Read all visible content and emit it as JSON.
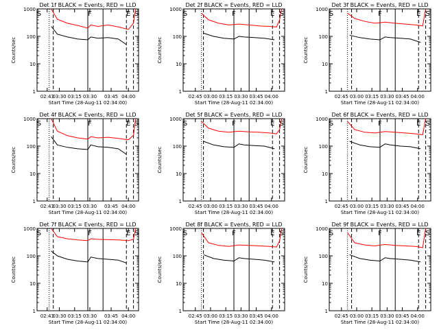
{
  "colors": {
    "events": "#000000",
    "lld": "#ff0000",
    "axes": "#000000"
  },
  "shared": {
    "ylabel": "Counts/sec",
    "xlabel": "Start Time (28-Aug-11 02:34:00)",
    "yticks": [
      "1",
      "10",
      "100",
      "1000"
    ],
    "ylim": [
      1,
      1000
    ],
    "yscale": "log",
    "xlim_minutes": [
      0,
      100
    ],
    "xticks_standard": [
      "02:45",
      "03:00",
      "03:15",
      "03:30",
      "03:45",
      "04:00"
    ],
    "xticks_compact": [
      "02:43",
      "03:30",
      "03:15",
      "03:30",
      "03:45",
      "04:00"
    ]
  },
  "chart_data": [
    {
      "type": "line",
      "title": "Det 1f BLACK = Events, RED = LLD",
      "xtick_style": "compact",
      "markers": [
        {
          "label": "S",
          "x": 2
        },
        {
          "label": "F",
          "x": 52
        },
        {
          "label": "E",
          "x": 90
        },
        {
          "label": "S",
          "x": 98
        }
      ],
      "vlines": [
        {
          "x": 12,
          "style": "dotted"
        },
        {
          "x": 16,
          "style": "dashed"
        },
        {
          "x": 50,
          "style": "solid"
        },
        {
          "x": 65,
          "style": "solid"
        },
        {
          "x": 88,
          "style": "dashed"
        },
        {
          "x": 95,
          "style": "dashed"
        }
      ],
      "series": [
        {
          "name": "BLACK = Events",
          "color": "#000000",
          "x": [
            14,
            20,
            30,
            40,
            50,
            53,
            60,
            70,
            80,
            88
          ],
          "y": [
            230,
            120,
            95,
            80,
            75,
            95,
            85,
            90,
            80,
            50
          ]
        },
        {
          "name": "RED = LLD",
          "color": "#ff0000",
          "x": [
            14,
            20,
            30,
            40,
            50,
            53,
            60,
            70,
            80,
            90,
            95,
            97
          ],
          "y": [
            1000,
            420,
            300,
            250,
            200,
            260,
            230,
            260,
            220,
            180,
            300,
            1000
          ]
        }
      ]
    },
    {
      "type": "line",
      "title": "Det 2f BLACK = Events, RED = LLD",
      "xtick_style": "standard",
      "markers": [
        {
          "label": "S",
          "x": 2
        },
        {
          "label": "F",
          "x": 50
        },
        {
          "label": "E",
          "x": 88
        },
        {
          "label": "S",
          "x": 97
        }
      ],
      "vlines": [
        {
          "x": 18,
          "style": "dotted"
        },
        {
          "x": 20,
          "style": "dashed"
        },
        {
          "x": 50,
          "style": "solid"
        },
        {
          "x": 65,
          "style": "solid"
        },
        {
          "x": 88,
          "style": "dashed"
        },
        {
          "x": 95,
          "style": "dashed"
        }
      ],
      "series": [
        {
          "name": "BLACK = Events",
          "color": "#000000",
          "x": [
            20,
            30,
            40,
            50,
            55,
            60,
            70,
            80,
            90
          ],
          "y": [
            130,
            100,
            85,
            80,
            100,
            95,
            90,
            85,
            75
          ]
        },
        {
          "name": "RED = LLD",
          "color": "#ff0000",
          "x": [
            18,
            25,
            35,
            45,
            55,
            65,
            75,
            85,
            92,
            95,
            97
          ],
          "y": [
            700,
            400,
            300,
            260,
            280,
            260,
            240,
            230,
            220,
            400,
            1000
          ]
        }
      ]
    },
    {
      "type": "line",
      "title": "Det 3f BLACK = Events, RED = LLD",
      "xtick_style": "standard",
      "markers": [
        {
          "label": "S",
          "x": 2
        },
        {
          "label": "F",
          "x": 50
        },
        {
          "label": "E",
          "x": 88
        },
        {
          "label": "S",
          "x": 97
        }
      ],
      "vlines": [
        {
          "x": 18,
          "style": "dotted"
        },
        {
          "x": 22,
          "style": "dashed"
        },
        {
          "x": 50,
          "style": "solid"
        },
        {
          "x": 65,
          "style": "solid"
        },
        {
          "x": 88,
          "style": "dashed"
        },
        {
          "x": 95,
          "style": "dashed"
        }
      ],
      "series": [
        {
          "name": "BLACK = Events",
          "color": "#000000",
          "x": [
            20,
            30,
            40,
            50,
            55,
            60,
            70,
            80,
            90
          ],
          "y": [
            110,
            90,
            80,
            75,
            95,
            90,
            85,
            80,
            60
          ]
        },
        {
          "name": "RED = LLD",
          "color": "#ff0000",
          "x": [
            18,
            25,
            35,
            45,
            55,
            65,
            75,
            85,
            92,
            95
          ],
          "y": [
            700,
            450,
            350,
            300,
            330,
            300,
            280,
            260,
            240,
            1000
          ]
        }
      ]
    },
    {
      "type": "line",
      "title": "Det 4f BLACK = Events, RED = LLD",
      "xtick_style": "compact",
      "markers": [
        {
          "label": "S",
          "x": 2
        },
        {
          "label": "F",
          "x": 52
        },
        {
          "label": "E",
          "x": 90
        },
        {
          "label": "S",
          "x": 98
        }
      ],
      "vlines": [
        {
          "x": 12,
          "style": "dotted"
        },
        {
          "x": 16,
          "style": "dashed"
        },
        {
          "x": 50,
          "style": "solid"
        },
        {
          "x": 65,
          "style": "solid"
        },
        {
          "x": 88,
          "style": "dashed"
        },
        {
          "x": 95,
          "style": "dashed"
        }
      ],
      "series": [
        {
          "name": "BLACK = Events",
          "color": "#000000",
          "x": [
            14,
            20,
            30,
            40,
            50,
            53,
            60,
            70,
            80,
            88
          ],
          "y": [
            220,
            110,
            90,
            80,
            75,
            110,
            95,
            90,
            80,
            50
          ]
        },
        {
          "name": "RED = LLD",
          "color": "#ff0000",
          "x": [
            14,
            20,
            30,
            40,
            50,
            53,
            60,
            70,
            80,
            90,
            95,
            97
          ],
          "y": [
            1000,
            350,
            240,
            200,
            180,
            220,
            200,
            210,
            190,
            170,
            250,
            1000
          ]
        }
      ]
    },
    {
      "type": "line",
      "title": "Det 5f BLACK = Events, RED = LLD",
      "xtick_style": "standard",
      "markers": [
        {
          "label": "S",
          "x": 2
        },
        {
          "label": "F",
          "x": 50
        },
        {
          "label": "E",
          "x": 88
        },
        {
          "label": "S",
          "x": 97
        }
      ],
      "vlines": [
        {
          "x": 18,
          "style": "dotted"
        },
        {
          "x": 20,
          "style": "dashed"
        },
        {
          "x": 50,
          "style": "solid"
        },
        {
          "x": 65,
          "style": "solid"
        },
        {
          "x": 88,
          "style": "dashed"
        },
        {
          "x": 95,
          "style": "dashed"
        }
      ],
      "series": [
        {
          "name": "BLACK = Events",
          "color": "#000000",
          "x": [
            20,
            30,
            40,
            50,
            55,
            60,
            70,
            80,
            90
          ],
          "y": [
            150,
            110,
            95,
            90,
            120,
            110,
            105,
            100,
            80
          ]
        },
        {
          "name": "RED = LLD",
          "color": "#ff0000",
          "x": [
            18,
            25,
            35,
            45,
            55,
            65,
            75,
            85,
            92,
            95,
            97
          ],
          "y": [
            800,
            450,
            350,
            320,
            350,
            330,
            320,
            300,
            280,
            400,
            1000
          ]
        }
      ]
    },
    {
      "type": "line",
      "title": "Det 6f BLACK = Events, RED = LLD",
      "xtick_style": "standard",
      "markers": [
        {
          "label": "S",
          "x": 2
        },
        {
          "label": "F",
          "x": 50
        },
        {
          "label": "E",
          "x": 88
        },
        {
          "label": "S",
          "x": 97
        }
      ],
      "vlines": [
        {
          "x": 18,
          "style": "dotted"
        },
        {
          "x": 22,
          "style": "dashed"
        },
        {
          "x": 50,
          "style": "solid"
        },
        {
          "x": 65,
          "style": "solid"
        },
        {
          "x": 88,
          "style": "dashed"
        },
        {
          "x": 95,
          "style": "dashed"
        }
      ],
      "series": [
        {
          "name": "BLACK = Events",
          "color": "#000000",
          "x": [
            20,
            30,
            40,
            50,
            55,
            60,
            70,
            80,
            90
          ],
          "y": [
            150,
            110,
            95,
            90,
            120,
            110,
            100,
            95,
            80
          ]
        },
        {
          "name": "RED = LLD",
          "color": "#ff0000",
          "x": [
            18,
            25,
            35,
            45,
            55,
            65,
            75,
            85,
            92,
            95
          ],
          "y": [
            800,
            400,
            320,
            300,
            340,
            320,
            300,
            280,
            260,
            1000
          ]
        }
      ]
    },
    {
      "type": "line",
      "title": "Det 7f BLACK = Events, RED = LLD",
      "xtick_style": "compact",
      "markers": [
        {
          "label": "S",
          "x": 2
        },
        {
          "label": "F",
          "x": 52
        },
        {
          "label": "E",
          "x": 90
        },
        {
          "label": "S",
          "x": 98
        }
      ],
      "vlines": [
        {
          "x": 12,
          "style": "dotted"
        },
        {
          "x": 16,
          "style": "dashed"
        },
        {
          "x": 50,
          "style": "solid"
        },
        {
          "x": 65,
          "style": "solid"
        },
        {
          "x": 88,
          "style": "dashed"
        },
        {
          "x": 95,
          "style": "dashed"
        }
      ],
      "series": [
        {
          "name": "BLACK = Events",
          "color": "#000000",
          "x": [
            14,
            20,
            30,
            40,
            50,
            53,
            60,
            70,
            80,
            88
          ],
          "y": [
            150,
            100,
            75,
            65,
            60,
            90,
            80,
            75,
            70,
            55
          ]
        },
        {
          "name": "RED = LLD",
          "color": "#ff0000",
          "x": [
            14,
            20,
            30,
            40,
            50,
            53,
            60,
            70,
            80,
            90,
            95,
            97
          ],
          "y": [
            1000,
            500,
            420,
            380,
            360,
            420,
            400,
            390,
            380,
            360,
            400,
            1000
          ]
        }
      ]
    },
    {
      "type": "line",
      "title": "Det 8f BLACK = Events, RED = LLD",
      "xtick_style": "standard",
      "markers": [
        {
          "label": "S",
          "x": 2
        },
        {
          "label": "F",
          "x": 50
        },
        {
          "label": "E",
          "x": 88
        },
        {
          "label": "S",
          "x": 97
        }
      ],
      "vlines": [
        {
          "x": 18,
          "style": "dotted"
        },
        {
          "x": 20,
          "style": "dashed"
        },
        {
          "x": 50,
          "style": "solid"
        },
        {
          "x": 65,
          "style": "solid"
        },
        {
          "x": 88,
          "style": "dashed"
        },
        {
          "x": 95,
          "style": "dashed"
        }
      ],
      "series": [
        {
          "name": "BLACK = Events",
          "color": "#000000",
          "x": [
            20,
            30,
            40,
            50,
            55,
            60,
            70,
            80,
            90
          ],
          "y": [
            110,
            80,
            70,
            65,
            85,
            80,
            75,
            70,
            60
          ]
        },
        {
          "name": "RED = LLD",
          "color": "#ff0000",
          "x": [
            18,
            25,
            35,
            45,
            55,
            65,
            75,
            85,
            92,
            95,
            97
          ],
          "y": [
            700,
            300,
            240,
            220,
            250,
            240,
            230,
            220,
            210,
            350,
            1000
          ]
        }
      ]
    },
    {
      "type": "line",
      "title": "Det 9f BLACK = Events, RED = LLD",
      "xtick_style": "standard",
      "markers": [
        {
          "label": "S",
          "x": 2
        },
        {
          "label": "F",
          "x": 50
        },
        {
          "label": "E",
          "x": 88
        },
        {
          "label": "S",
          "x": 97
        }
      ],
      "vlines": [
        {
          "x": 18,
          "style": "dotted"
        },
        {
          "x": 22,
          "style": "dashed"
        },
        {
          "x": 50,
          "style": "solid"
        },
        {
          "x": 65,
          "style": "solid"
        },
        {
          "x": 88,
          "style": "dashed"
        },
        {
          "x": 95,
          "style": "dashed"
        }
      ],
      "series": [
        {
          "name": "BLACK = Events",
          "color": "#000000",
          "x": [
            20,
            30,
            40,
            50,
            55,
            60,
            70,
            80,
            90
          ],
          "y": [
            110,
            80,
            70,
            65,
            85,
            80,
            75,
            70,
            60
          ]
        },
        {
          "name": "RED = LLD",
          "color": "#ff0000",
          "x": [
            18,
            25,
            35,
            45,
            55,
            65,
            75,
            85,
            92,
            95
          ],
          "y": [
            700,
            300,
            250,
            230,
            260,
            240,
            230,
            220,
            200,
            1000
          ]
        }
      ]
    }
  ]
}
